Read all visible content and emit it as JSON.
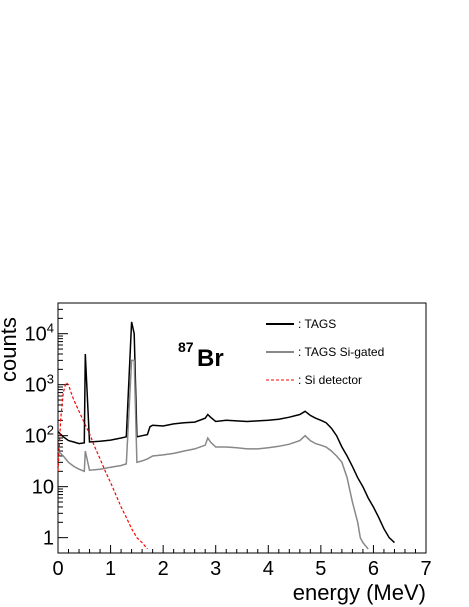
{
  "chart_data": {
    "type": "line",
    "title": "",
    "xlabel": "energy (MeV)",
    "ylabel": "counts",
    "xlim": [
      0,
      7
    ],
    "ylim": [
      0.5,
      40000
    ],
    "y_scale": "log",
    "grid": false,
    "legend_position": "top-right",
    "x_ticks": [
      "0",
      "1",
      "2",
      "3",
      "4",
      "5",
      "6",
      "7"
    ],
    "y_ticks": [
      {
        "value": 1,
        "base": "1",
        "exp": ""
      },
      {
        "value": 10,
        "base": "10",
        "exp": ""
      },
      {
        "value": 100,
        "base": "10",
        "exp": "2"
      },
      {
        "value": 1000,
        "base": "10",
        "exp": "3"
      },
      {
        "value": 10000,
        "base": "10",
        "exp": "4"
      }
    ],
    "annotation": {
      "superscript": "87",
      "text": "Br"
    },
    "series": [
      {
        "name": ": TAGS",
        "color": "#000000",
        "dash": "",
        "x": [
          0.0,
          0.1,
          0.2,
          0.3,
          0.4,
          0.5,
          0.52,
          0.6,
          0.8,
          1.0,
          1.2,
          1.3,
          1.4,
          1.45,
          1.5,
          1.6,
          1.7,
          1.75,
          1.8,
          2.0,
          2.2,
          2.4,
          2.6,
          2.8,
          2.85,
          2.9,
          3.0,
          3.2,
          3.4,
          3.6,
          3.8,
          4.0,
          4.2,
          4.4,
          4.6,
          4.7,
          4.8,
          4.9,
          5.0,
          5.1,
          5.2,
          5.3,
          5.4,
          5.5,
          5.6,
          5.7,
          5.8,
          5.9,
          6.0,
          6.1,
          6.2,
          6.3,
          6.4
        ],
        "values": [
          120,
          95,
          80,
          75,
          70,
          72,
          4000,
          75,
          78,
          82,
          90,
          95,
          17000,
          10000,
          95,
          100,
          105,
          150,
          160,
          155,
          170,
          180,
          185,
          220,
          260,
          230,
          190,
          200,
          195,
          190,
          195,
          200,
          210,
          230,
          260,
          300,
          250,
          220,
          200,
          180,
          140,
          100,
          60,
          40,
          25,
          15,
          10,
          6,
          4,
          2.5,
          1.5,
          1,
          0.8
        ]
      },
      {
        "name": ": TAGS Si-gated",
        "color": "#888888",
        "dash": "",
        "x": [
          0.0,
          0.1,
          0.2,
          0.3,
          0.4,
          0.5,
          0.52,
          0.6,
          0.8,
          1.0,
          1.2,
          1.3,
          1.4,
          1.45,
          1.5,
          1.6,
          1.7,
          1.8,
          2.0,
          2.2,
          2.4,
          2.6,
          2.8,
          2.85,
          2.9,
          3.0,
          3.2,
          3.4,
          3.6,
          3.8,
          4.0,
          4.2,
          4.4,
          4.6,
          4.7,
          4.8,
          4.9,
          5.0,
          5.1,
          5.2,
          5.3,
          5.4,
          5.5,
          5.6,
          5.7,
          5.75,
          5.8,
          5.9
        ],
        "values": [
          50,
          40,
          30,
          25,
          22,
          20,
          50,
          21,
          22,
          24,
          26,
          28,
          3000,
          3000,
          30,
          32,
          35,
          40,
          42,
          45,
          50,
          55,
          65,
          90,
          75,
          60,
          60,
          58,
          55,
          55,
          58,
          62,
          68,
          80,
          100,
          80,
          70,
          65,
          60,
          50,
          40,
          30,
          15,
          5,
          2,
          1,
          0.8,
          0.6
        ]
      },
      {
        "name": ": Si detector",
        "color": "#ff0000",
        "dash": "3,2",
        "x": [
          0.0,
          0.05,
          0.1,
          0.15,
          0.2,
          0.25,
          0.3,
          0.4,
          0.5,
          0.6,
          0.7,
          0.8,
          0.9,
          1.0,
          1.1,
          1.2,
          1.3,
          1.4,
          1.5,
          1.6,
          1.7
        ],
        "values": [
          20,
          200,
          700,
          1100,
          1000,
          700,
          500,
          300,
          180,
          110,
          60,
          35,
          20,
          12,
          7,
          4,
          2.5,
          1.5,
          1,
          0.8,
          0.6
        ]
      }
    ]
  }
}
